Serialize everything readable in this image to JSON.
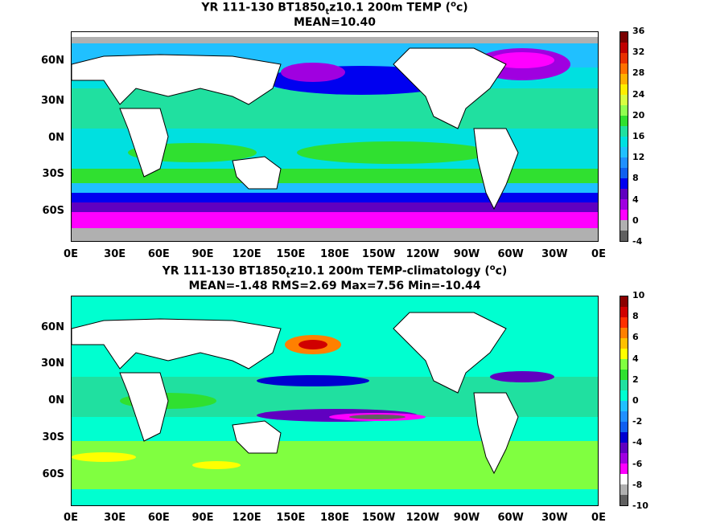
{
  "panel1": {
    "title_part1": "YR 111-130 BT1850",
    "title_sub": "t",
    "title_part2": "z10.1 200m TEMP (",
    "title_sup": "o",
    "title_part3": "c)",
    "subtitle": "MEAN=10.40",
    "colorbar_labels": [
      "36",
      "32",
      "28",
      "24",
      "20",
      "16",
      "12",
      "8",
      "4",
      "0",
      "-4"
    ],
    "colorbar_colors": [
      "#7a0000",
      "#c00000",
      "#e83000",
      "#ff7000",
      "#ffb000",
      "#ffee00",
      "#d8ff40",
      "#90ff50",
      "#30e030",
      "#20e0a0",
      "#00e0e0",
      "#20c0ff",
      "#2090ff",
      "#1060f0",
      "#0000f0",
      "#6000c0",
      "#a000e0",
      "#ff00ff",
      "#b0b0b0",
      "#606060"
    ]
  },
  "panel2": {
    "title_part1": "YR 111-130 BT1850",
    "title_sub": "t",
    "title_part2": "z10.1 200m TEMP-climatology (",
    "title_sup": "o",
    "title_part3": "c)",
    "subtitle": "MEAN=-1.48   RMS=2.69   Max=7.56   Min=-10.44",
    "colorbar_labels": [
      "10",
      "8",
      "6",
      "4",
      "2",
      "0",
      "-2",
      "-4",
      "-6",
      "-8",
      "-10"
    ],
    "colorbar_colors": [
      "#8b0000",
      "#d00000",
      "#ff3000",
      "#ff8000",
      "#ffc000",
      "#ffff00",
      "#80ff40",
      "#30e030",
      "#20e0a0",
      "#00ffd0",
      "#20c0ff",
      "#2090ff",
      "#1060f0",
      "#0000d0",
      "#6000c0",
      "#a000e0",
      "#ff00ff",
      "#ffffff",
      "#b0b0b0",
      "#606060"
    ]
  },
  "axes": {
    "lat_labels": [
      "60N",
      "30N",
      "0N",
      "30S",
      "60S"
    ],
    "lon_labels": [
      "0E",
      "30E",
      "60E",
      "90E",
      "120E",
      "150E",
      "180E",
      "150W",
      "120W",
      "90W",
      "60W",
      "30W",
      "0E"
    ]
  }
}
